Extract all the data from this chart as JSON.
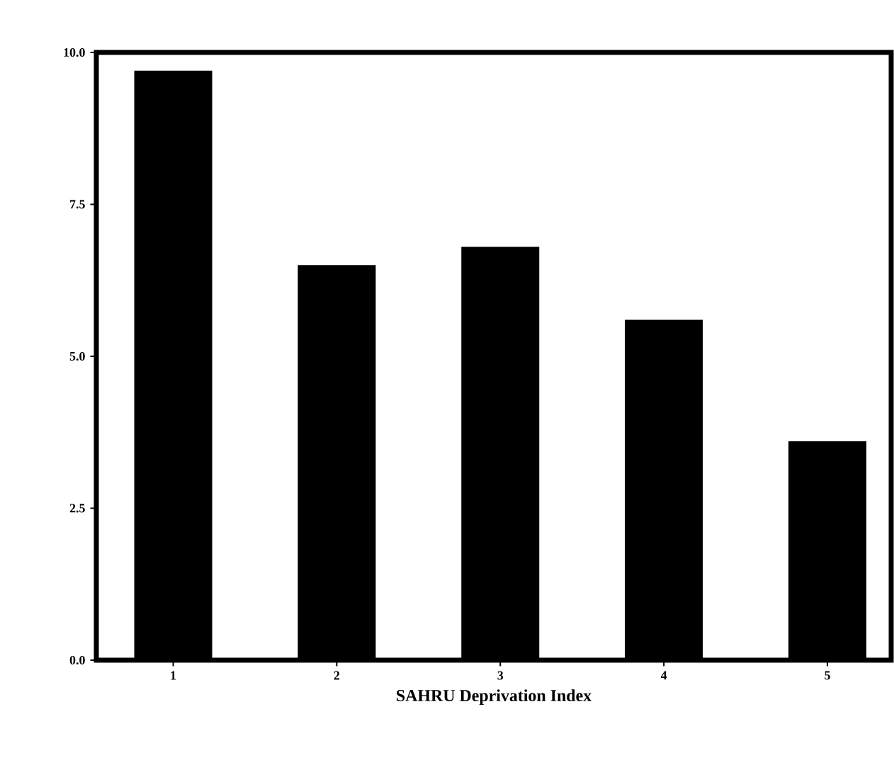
{
  "chart_data": {
    "type": "bar",
    "xlabel": "SAHRU Deprivation Index",
    "categories": [
      "1",
      "2",
      "3",
      "4",
      "5"
    ],
    "values": [
      9.7,
      6.5,
      6.8,
      5.6,
      3.6
    ],
    "color": "#000000",
    "ylim": [
      0,
      10
    ],
    "yticks": [
      {
        "value": 0,
        "label": "0.0"
      },
      {
        "value": 2.5,
        "label": "2.5"
      },
      {
        "value": 5,
        "label": "5.0"
      },
      {
        "value": 7.5,
        "label": "7.5"
      },
      {
        "value": 10,
        "label": "10.0"
      }
    ],
    "grid": false
  }
}
